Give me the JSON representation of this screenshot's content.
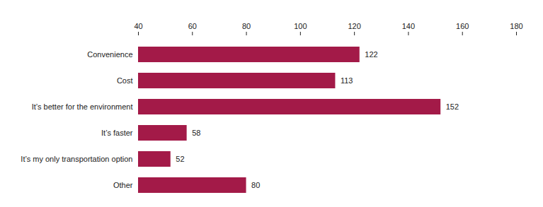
{
  "chart_data": {
    "type": "bar",
    "orientation": "horizontal",
    "categories": [
      "Convenience",
      "Cost",
      "It’s better for the environment",
      "It’s faster",
      "It’s my only transportation option",
      "Other"
    ],
    "values": [
      122,
      113,
      152,
      58,
      52,
      80
    ],
    "color": "#a31a48",
    "xlim": [
      40,
      180
    ],
    "xticks": [
      40,
      60,
      80,
      100,
      120,
      140,
      160,
      180
    ],
    "grid": false,
    "data_labels": true
  }
}
